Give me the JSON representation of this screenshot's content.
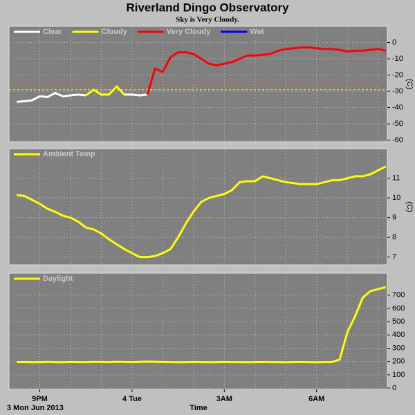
{
  "title": "Riverland Dingo Observatory",
  "subtitle": "Sky is Very Cloudy.",
  "xlabel": "Time",
  "date_note": "3 Mon Jun 2013",
  "time_axis": {
    "xlim": [
      20,
      32.3
    ],
    "xticks": [
      {
        "value": 21,
        "label": "9PM"
      },
      {
        "value": 24,
        "label": "4 Tue"
      },
      {
        "value": 27,
        "label": "3AM"
      },
      {
        "value": 30,
        "label": "6AM"
      }
    ],
    "xminor": [
      22,
      23,
      25,
      26,
      28,
      29,
      31,
      32
    ],
    "x": [
      20.25,
      20.5,
      20.75,
      21,
      21.25,
      21.5,
      21.75,
      22,
      22.25,
      22.5,
      22.75,
      23,
      23.25,
      23.5,
      23.75,
      24,
      24.25,
      24.5,
      24.75,
      25,
      25.25,
      25.5,
      25.75,
      26,
      26.25,
      26.5,
      26.75,
      27,
      27.25,
      27.5,
      27.75,
      28,
      28.25,
      28.5,
      28.75,
      29,
      29.25,
      29.5,
      29.75,
      30,
      30.25,
      30.5,
      30.75,
      31,
      31.25,
      31.5,
      31.75,
      32,
      32.25
    ]
  },
  "chart_data": [
    {
      "type": "line",
      "ylabel": "(C)",
      "ylim": [
        -61,
        10
      ],
      "yticks": [
        0,
        -10,
        -20,
        -30,
        -40,
        -50,
        -60
      ],
      "grid": true,
      "thresholds": [
        {
          "value": -25,
          "color": "#ff4040"
        },
        {
          "value": -29,
          "color": "#ffff00"
        }
      ],
      "series": [
        {
          "name": "Clear",
          "color": "#ffffff",
          "values": [
            -36.5,
            -36,
            -35.5,
            -33,
            -33.5,
            -31,
            -33,
            -32.5,
            -32,
            -32.5,
            null,
            -32,
            -32,
            null,
            -32,
            -32,
            -32.5,
            -32,
            null,
            null,
            null,
            null,
            null,
            null,
            null,
            null,
            null,
            null,
            null,
            null,
            null,
            null,
            null,
            null,
            null,
            null,
            null,
            null,
            null,
            null,
            null,
            null,
            null,
            null,
            null,
            null,
            null,
            null,
            null
          ]
        },
        {
          "name": "Cloudy",
          "color": "#ffff00",
          "values": [
            null,
            null,
            null,
            null,
            null,
            null,
            null,
            null,
            null,
            -32.5,
            -29,
            -32,
            -32,
            -27,
            -32,
            null,
            null,
            null,
            null,
            null,
            null,
            null,
            null,
            null,
            null,
            null,
            null,
            null,
            null,
            null,
            null,
            null,
            null,
            null,
            null,
            null,
            null,
            null,
            null,
            null,
            null,
            null,
            null,
            null,
            null,
            null,
            null,
            null,
            null
          ]
        },
        {
          "name": "Very Cloudy",
          "color": "#ff0000",
          "values": [
            null,
            null,
            null,
            null,
            null,
            null,
            null,
            null,
            null,
            null,
            null,
            null,
            null,
            null,
            null,
            null,
            null,
            -32,
            -16,
            -18,
            -9,
            -6,
            -6,
            -7,
            -10,
            -13,
            -14,
            -13,
            -12,
            -10,
            -8,
            -8,
            -7.5,
            -7,
            -5,
            -4,
            -3.5,
            -3,
            -3,
            -3.5,
            -4,
            -4,
            -4.5,
            -5.5,
            -5,
            -5,
            -4.5,
            -4,
            -5
          ]
        },
        {
          "name": "Wet",
          "color": "#0000ff",
          "values": [
            null,
            null,
            null,
            null,
            null,
            null,
            null,
            null,
            null,
            null,
            null,
            null,
            null,
            null,
            null,
            null,
            null,
            null,
            null,
            null,
            null,
            null,
            null,
            null,
            null,
            null,
            null,
            null,
            null,
            null,
            null,
            null,
            null,
            null,
            null,
            null,
            null,
            null,
            null,
            null,
            null,
            null,
            null,
            null,
            null,
            null,
            null,
            null,
            null
          ]
        }
      ]
    },
    {
      "type": "line",
      "ylabel": "(C)",
      "ylim": [
        6.6,
        12.5
      ],
      "yticks": [
        7,
        8,
        9,
        10,
        11
      ],
      "grid": true,
      "series": [
        {
          "name": "Ambient Temp",
          "color": "#ffff00",
          "values": [
            10.15,
            10.1,
            9.9,
            9.7,
            9.45,
            9.3,
            9.1,
            9.0,
            8.8,
            8.5,
            8.4,
            8.2,
            7.9,
            7.65,
            7.4,
            7.2,
            7.0,
            7.0,
            7.05,
            7.2,
            7.4,
            8.0,
            8.7,
            9.3,
            9.8,
            10.0,
            10.1,
            10.2,
            10.4,
            10.8,
            10.85,
            10.85,
            11.1,
            11.0,
            10.9,
            10.8,
            10.75,
            10.7,
            10.7,
            10.7,
            10.8,
            10.9,
            10.9,
            11.0,
            11.1,
            11.1,
            11.2,
            11.4,
            11.6
          ]
        }
      ]
    },
    {
      "type": "line",
      "ylim": [
        -10,
        865
      ],
      "yticks": [
        0,
        100,
        200,
        300,
        400,
        500,
        600,
        700
      ],
      "grid": true,
      "series": [
        {
          "name": "Daylight",
          "color": "#ffff00",
          "values": [
            195,
            196,
            194,
            195,
            197,
            195,
            194,
            196,
            195,
            195,
            197,
            196,
            195,
            198,
            196,
            195,
            197,
            199,
            198,
            196,
            195,
            194,
            195,
            196,
            195,
            194,
            195,
            196,
            195,
            195,
            194,
            195,
            196,
            195,
            195,
            194,
            195,
            196,
            195,
            194,
            195,
            196,
            215,
            420,
            540,
            680,
            730,
            745,
            760
          ]
        }
      ]
    }
  ]
}
